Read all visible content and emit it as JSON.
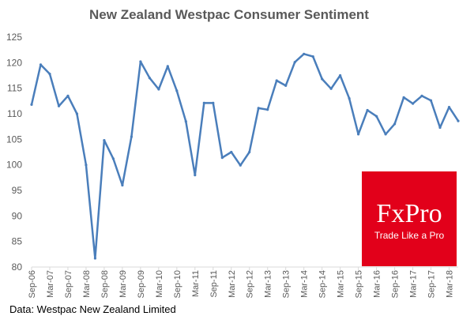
{
  "chart_data": {
    "type": "line",
    "title": "New Zealand Westpac Consumer Sentiment",
    "xlabel": "",
    "ylabel": "",
    "ylim": [
      80,
      125
    ],
    "yticks": [
      80,
      85,
      90,
      95,
      100,
      105,
      110,
      115,
      120,
      125
    ],
    "xtick_labels": [
      "Sep-06",
      "Mar-07",
      "Sep-07",
      "Mar-08",
      "Sep-08",
      "Mar-09",
      "Sep-09",
      "Mar-10",
      "Sep-10",
      "Mar-11",
      "Sep-11",
      "Mar-12",
      "Sep-12",
      "Mar-13",
      "Sep-13",
      "Mar-14",
      "Sep-14",
      "Mar-15",
      "Sep-15",
      "Mar-16",
      "Sep-16",
      "Mar-17",
      "Sep-17",
      "Mar-18"
    ],
    "grid": false,
    "legend": "none",
    "series": [
      {
        "name": "Westpac Consumer Sentiment",
        "color": "#4a7ebb",
        "values": [
          111.8,
          119.6,
          117.8,
          111.5,
          113.5,
          110.0,
          100.0,
          81.7,
          104.8,
          101.2,
          96.0,
          105.5,
          120.2,
          117.0,
          114.8,
          119.3,
          114.5,
          108.5,
          98.0,
          112.1,
          112.1,
          101.4,
          102.5,
          99.9,
          102.5,
          111.1,
          110.8,
          116.5,
          115.5,
          120.1,
          121.7,
          121.2,
          116.8,
          114.9,
          117.5,
          113.0,
          106.0,
          110.7,
          109.5,
          106.0,
          108.0,
          113.2,
          112.0,
          113.5,
          112.6,
          107.3,
          111.3,
          108.6
        ]
      }
    ]
  },
  "source_text": "Data: Westpac New Zealand Limited",
  "brand": {
    "name": "FxPro",
    "tagline": "Trade Like a Pro",
    "color": "#e2001a"
  }
}
